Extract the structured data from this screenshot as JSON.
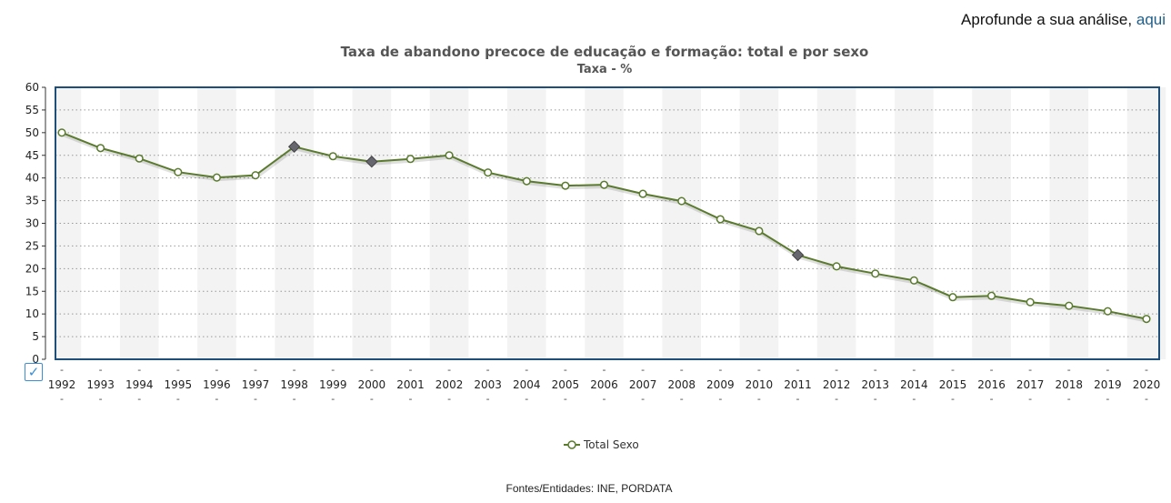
{
  "header": {
    "link_prefix": "Aprofunde a sua análise,",
    "link_text": "aqui"
  },
  "footer": {
    "source": "Fontes/Entidades: INE, PORDATA"
  },
  "controls": {
    "checkbox_glyph": "✓"
  },
  "colors": {
    "line": "#5a7a2e",
    "marker_fill": "#ffffff",
    "highlight_marker": "#66666e",
    "frame": "#1f4e79",
    "band": "#f3f3f3"
  },
  "chart_data": {
    "type": "line",
    "title": "Taxa de abandono precoce de educação e formação: total e por sexo",
    "subtitle": "Taxa - %",
    "xlabel": "",
    "ylabel": "",
    "ylim": [
      0,
      60
    ],
    "yticks": [
      0,
      5,
      10,
      15,
      20,
      25,
      30,
      35,
      40,
      45,
      50,
      55,
      60
    ],
    "grid": true,
    "legend_position": "bottom-center",
    "categories": [
      "1992",
      "1993",
      "1994",
      "1995",
      "1996",
      "1997",
      "1998",
      "1999",
      "2000",
      "2001",
      "2002",
      "2003",
      "2004",
      "2005",
      "2006",
      "2007",
      "2008",
      "2009",
      "2010",
      "2011",
      "2012",
      "2013",
      "2014",
      "2015",
      "2016",
      "2017",
      "2018",
      "2019",
      "2020"
    ],
    "series": [
      {
        "name": "Total Sexo",
        "values": [
          50.0,
          46.6,
          44.3,
          41.3,
          40.1,
          40.6,
          46.9,
          44.8,
          43.6,
          44.2,
          45.0,
          41.2,
          39.3,
          38.3,
          38.5,
          36.5,
          34.9,
          30.9,
          28.3,
          23.0,
          20.5,
          18.9,
          17.4,
          13.7,
          14.0,
          12.6,
          11.8,
          10.6,
          8.9
        ],
        "highlighted": [
          "1998",
          "2000",
          "2011"
        ]
      }
    ]
  }
}
